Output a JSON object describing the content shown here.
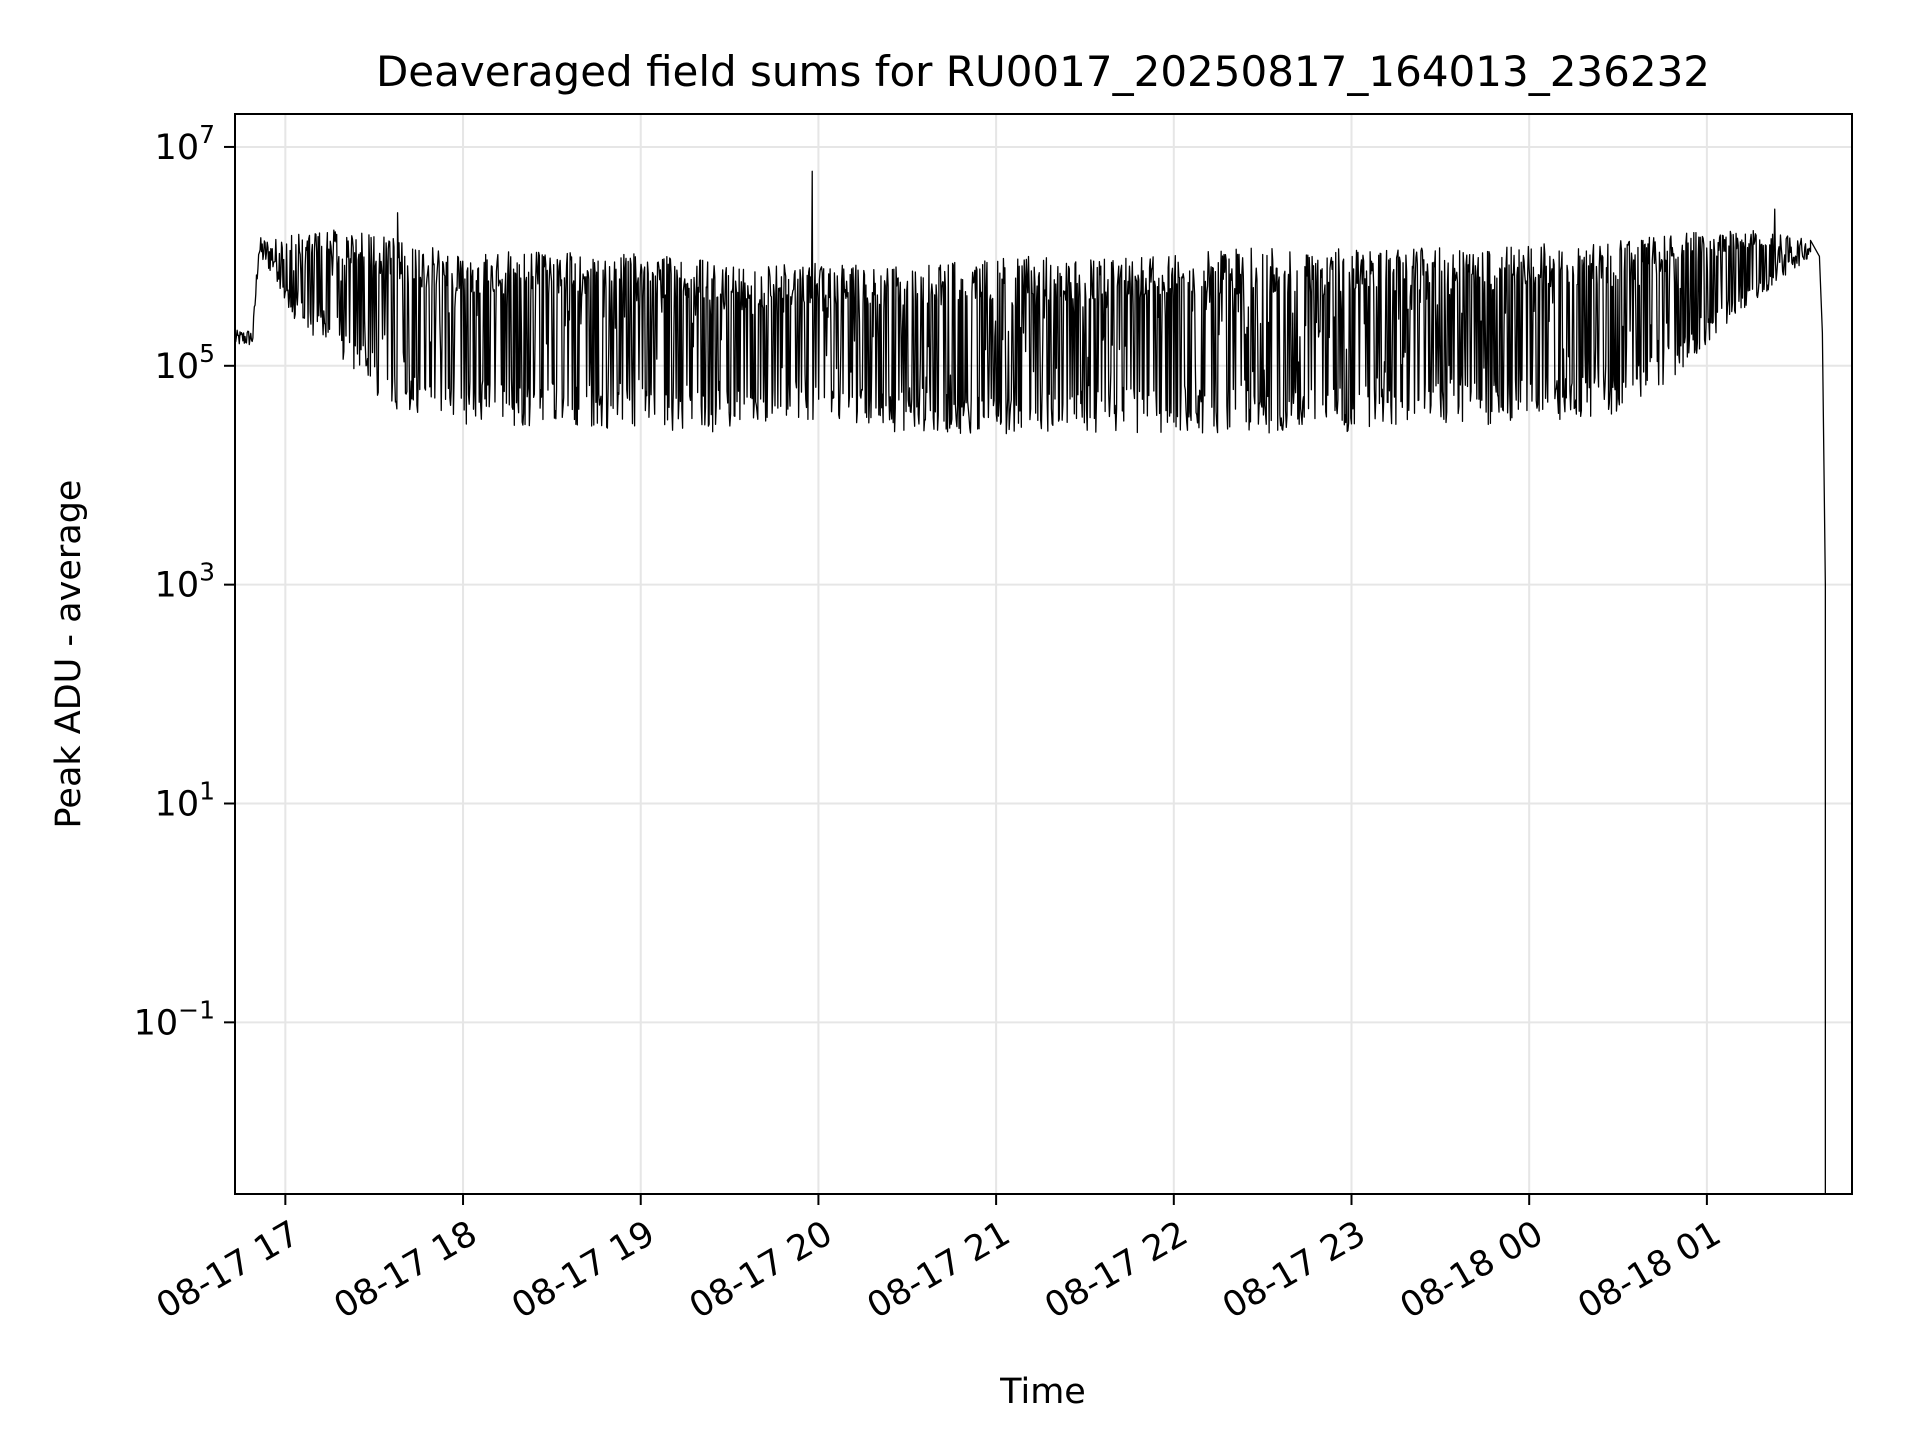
{
  "chart_data": {
    "type": "line",
    "title": "Deaveraged field sums for RU0017_20250817_164013_236232",
    "xlabel": "Time",
    "ylabel": "Peak ADU - average",
    "x_axis": {
      "kind": "datetime",
      "range": [
        "2025-08-17T16:43",
        "2025-08-18T01:49"
      ],
      "ticks": [
        {
          "value": "2025-08-17T17:00",
          "label": "08-17 17"
        },
        {
          "value": "2025-08-17T18:00",
          "label": "08-17 18"
        },
        {
          "value": "2025-08-17T19:00",
          "label": "08-17 19"
        },
        {
          "value": "2025-08-17T20:00",
          "label": "08-17 20"
        },
        {
          "value": "2025-08-17T21:00",
          "label": "08-17 21"
        },
        {
          "value": "2025-08-17T22:00",
          "label": "08-17 22"
        },
        {
          "value": "2025-08-17T23:00",
          "label": "08-17 23"
        },
        {
          "value": "2025-08-18T00:00",
          "label": "08-18 00"
        },
        {
          "value": "2025-08-18T01:00",
          "label": "08-18 01"
        }
      ]
    },
    "y_axis": {
      "scale": "log",
      "range": [
        0.0027,
        20000000
      ],
      "ticks": [
        {
          "value": 0.1,
          "base": "10",
          "exp": "−1"
        },
        {
          "value": 10,
          "base": "10",
          "exp": "1"
        },
        {
          "value": 1000,
          "base": "10",
          "exp": "3"
        },
        {
          "value": 100000,
          "base": "10",
          "exp": "5"
        },
        {
          "value": 10000000,
          "base": "10",
          "exp": "7"
        }
      ]
    },
    "grid": true,
    "line_color": "#000000",
    "grid_color": "#e6e6e6",
    "series": [
      {
        "name": "",
        "envelope_points": [
          {
            "t": "2025-08-17T16:43",
            "low": 150000,
            "high": 210000
          },
          {
            "t": "2025-08-17T16:49",
            "low": 150000,
            "high": 220000
          },
          {
            "t": "2025-08-17T16:51",
            "low": 900000,
            "high": 1500000
          },
          {
            "t": "2025-08-17T16:57",
            "low": 600000,
            "high": 1500000
          },
          {
            "t": "2025-08-17T17:05",
            "low": 200000,
            "high": 1600000
          },
          {
            "t": "2025-08-17T17:15",
            "low": 150000,
            "high": 1800000
          },
          {
            "t": "2025-08-17T17:25",
            "low": 80000,
            "high": 1700000
          },
          {
            "t": "2025-08-17T17:35",
            "low": 40000,
            "high": 1500000
          },
          {
            "t": "2025-08-17T17:50",
            "low": 30000,
            "high": 1200000
          },
          {
            "t": "2025-08-17T18:15",
            "low": 28000,
            "high": 1100000
          },
          {
            "t": "2025-08-17T18:45",
            "low": 27000,
            "high": 1100000
          },
          {
            "t": "2025-08-17T19:15",
            "low": 25000,
            "high": 1000000
          },
          {
            "t": "2025-08-17T19:40",
            "low": 24000,
            "high": 800000
          },
          {
            "t": "2025-08-17T20:00",
            "low": 30000,
            "high": 900000
          },
          {
            "t": "2025-08-17T20:30",
            "low": 24000,
            "high": 800000
          },
          {
            "t": "2025-08-17T21:00",
            "low": 24000,
            "high": 1000000
          },
          {
            "t": "2025-08-17T21:30",
            "low": 24000,
            "high": 1000000
          },
          {
            "t": "2025-08-17T22:00",
            "low": 24000,
            "high": 1100000
          },
          {
            "t": "2025-08-17T22:30",
            "low": 24000,
            "high": 1200000
          },
          {
            "t": "2025-08-17T23:00",
            "low": 25000,
            "high": 1200000
          },
          {
            "t": "2025-08-17T23:30",
            "low": 28000,
            "high": 1200000
          },
          {
            "t": "2025-08-18T00:00",
            "low": 30000,
            "high": 1300000
          },
          {
            "t": "2025-08-18T00:30",
            "low": 35000,
            "high": 1400000
          },
          {
            "t": "2025-08-18T00:50",
            "low": 80000,
            "high": 1600000
          },
          {
            "t": "2025-08-18T01:10",
            "low": 300000,
            "high": 1800000
          },
          {
            "t": "2025-08-18T01:25",
            "low": 600000,
            "high": 1600000
          },
          {
            "t": "2025-08-18T01:35",
            "low": 1000000,
            "high": 1400000
          }
        ],
        "spikes": [
          {
            "t": "2025-08-17T17:38",
            "value": 2500000
          },
          {
            "t": "2025-08-17T19:58",
            "value": 6000000
          },
          {
            "t": "2025-08-18T01:23",
            "value": 2700000
          }
        ],
        "tail": [
          {
            "t": "2025-08-18T01:35",
            "value": 1400000
          },
          {
            "t": "2025-08-18T01:38",
            "value": 1000000
          },
          {
            "t": "2025-08-18T01:39",
            "value": 200000
          },
          {
            "t": "2025-08-18T01:40",
            "value": 1000
          },
          {
            "t": "2025-08-18T01:40",
            "value": 0.0027
          }
        ]
      }
    ]
  }
}
